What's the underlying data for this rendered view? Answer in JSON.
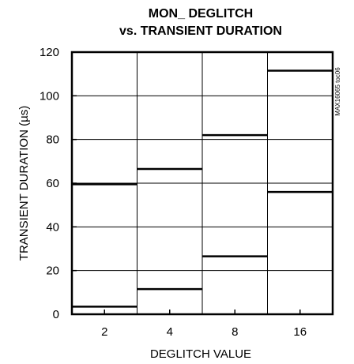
{
  "chart_data": {
    "type": "line",
    "title": "MON_ DEGLITCH",
    "subtitle": "vs. TRANSIENT DURATION",
    "xlabel": "DEGLITCH VALUE",
    "ylabel": "TRANSIENT DURATION (µs)",
    "side_code": "MAX16065 toc06",
    "categories": [
      "2",
      "4",
      "8",
      "16"
    ],
    "yticks": [
      0,
      20,
      40,
      60,
      80,
      100,
      120
    ],
    "ylim": [
      0,
      120
    ],
    "grid": true,
    "series": [
      {
        "values": [
          59.5,
          66.5,
          82,
          111.5
        ]
      },
      {
        "values": [
          3.5,
          11.5,
          26.5,
          56
        ]
      }
    ],
    "series_end_values": [
      [
        59.5,
        66.5,
        82,
        111.5
      ],
      [
        3.5,
        11.5,
        26.5,
        56
      ]
    ]
  },
  "colors": {
    "line": "#000000",
    "grid": "#000000",
    "background": "#ffffff"
  }
}
